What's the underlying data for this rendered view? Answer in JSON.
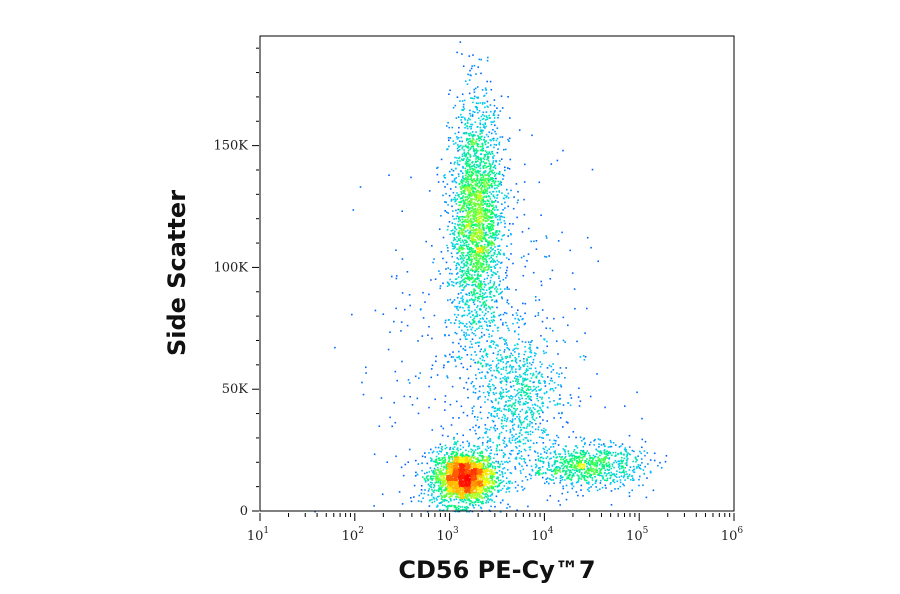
{
  "chart_data": {
    "type": "scatter",
    "title": "",
    "xlabel": "CD56 PE-Cy™7",
    "ylabel": "Side Scatter",
    "x_scale": "log",
    "xlim": [
      10,
      1000000
    ],
    "ylim": [
      0,
      195000
    ],
    "x_ticks": [
      {
        "value": 10,
        "base": "10",
        "exp": "1"
      },
      {
        "value": 100,
        "base": "10",
        "exp": "2"
      },
      {
        "value": 1000,
        "base": "10",
        "exp": "3"
      },
      {
        "value": 10000,
        "base": "10",
        "exp": "4"
      },
      {
        "value": 100000,
        "base": "10",
        "exp": "5"
      },
      {
        "value": 1000000,
        "base": "10",
        "exp": "6"
      }
    ],
    "y_ticks": [
      {
        "value": 0,
        "label": "0"
      },
      {
        "value": 50000,
        "label": "50K"
      },
      {
        "value": 100000,
        "label": "100K"
      },
      {
        "value": 150000,
        "label": "150K"
      }
    ],
    "grid": false,
    "legend": "none",
    "color_scale": [
      "#0000ff",
      "#00c8ff",
      "#00ff64",
      "#ffff00",
      "#ff8000",
      "#ff0000"
    ],
    "populations": [
      {
        "x_center": 1400,
        "x_log_spread": 0.17,
        "y_center": 14000,
        "y_spread": 5500,
        "weight": 0.34
      },
      {
        "x_center": 1900,
        "x_log_spread": 0.14,
        "y_center": 120000,
        "y_spread": 24000,
        "weight": 0.36
      },
      {
        "x_center": 5000,
        "x_log_spread": 0.22,
        "y_center": 48000,
        "y_spread": 13000,
        "weight": 0.1
      },
      {
        "x_center": 28000,
        "x_log_spread": 0.3,
        "y_center": 19000,
        "y_spread": 4500,
        "weight": 0.12
      },
      {
        "x_center": 2500,
        "x_log_spread": 0.55,
        "y_center": 60000,
        "y_spread": 40000,
        "weight": 0.08
      }
    ]
  }
}
